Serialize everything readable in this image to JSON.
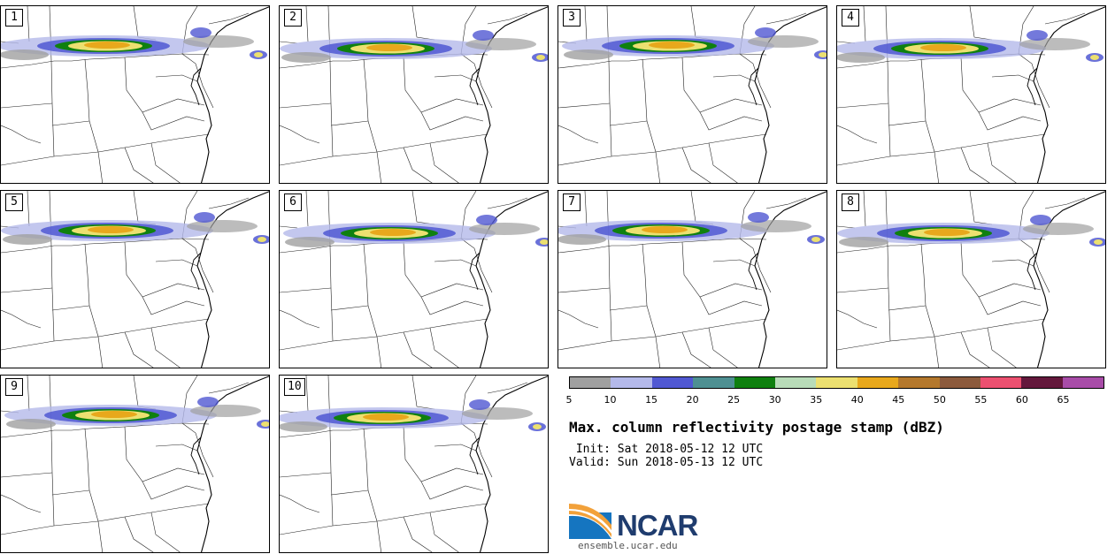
{
  "panels": [
    {
      "label": "1"
    },
    {
      "label": "2"
    },
    {
      "label": "3"
    },
    {
      "label": "4"
    },
    {
      "label": "5"
    },
    {
      "label": "6"
    },
    {
      "label": "7"
    },
    {
      "label": "8"
    },
    {
      "label": "9"
    },
    {
      "label": "10"
    }
  ],
  "colorbar": {
    "ticks": [
      "5",
      "10",
      "15",
      "20",
      "25",
      "30",
      "35",
      "40",
      "45",
      "50",
      "55",
      "60",
      "65"
    ],
    "colors": [
      "#a0a0a0",
      "#b4b9ea",
      "#5058d2",
      "#4e9092",
      "#0f800f",
      "#b8dcb8",
      "#ece070",
      "#e8a81c",
      "#b4782c",
      "#8c5a3c",
      "#ec5070",
      "#64183c",
      "#a84ca8"
    ]
  },
  "title": "Max. column reflectivity postage stamp (dBZ)",
  "init": " Init: Sat 2018-05-12 12 UTC",
  "valid": "Valid: Sun 2018-05-13 12 UTC",
  "logo": {
    "text": "NCAR",
    "url": "ensemble.ucar.edu"
  }
}
